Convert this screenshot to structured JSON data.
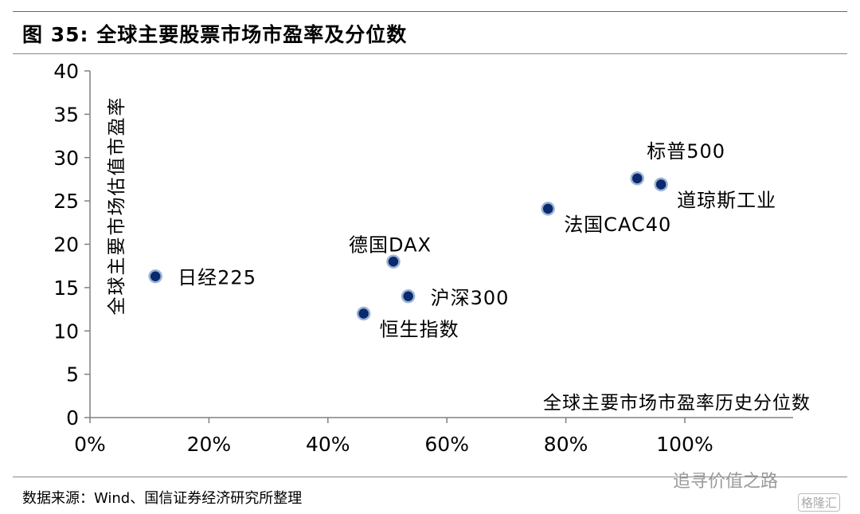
{
  "figure_title": "图 35:  全球主要股票市场市盈率及分位数",
  "source_note": "数据来源：Wind、国信证券经济研究所整理",
  "watermark": "追寻价值之路",
  "watermark_brand": "格隆汇",
  "chart_data": {
    "type": "scatter",
    "title": "",
    "xlabel": "全球主要市场市盈率历史分位数",
    "ylabel": "全球主要市场估值市盈率",
    "xlim": [
      0,
      1.2
    ],
    "ylim": [
      0,
      40
    ],
    "x_ticks": [
      0,
      0.2,
      0.4,
      0.6,
      0.8,
      1.0
    ],
    "x_tick_labels": [
      "0%",
      "20%",
      "40%",
      "60%",
      "80%",
      "100%"
    ],
    "y_ticks": [
      0,
      5,
      10,
      15,
      20,
      25,
      30,
      35,
      40
    ],
    "y_tick_labels": [
      "0",
      "5",
      "10",
      "15",
      "20",
      "25",
      "30",
      "35",
      "40"
    ],
    "grid": false,
    "legend": "none",
    "marker_color": "#0a2a6e",
    "points": [
      {
        "label": "日经225",
        "x": 0.11,
        "y": 16.3,
        "label_pos": "right"
      },
      {
        "label": "德国DAX",
        "x": 0.51,
        "y": 18.0,
        "label_pos": "top-left"
      },
      {
        "label": "沪深300",
        "x": 0.535,
        "y": 14.0,
        "label_pos": "right"
      },
      {
        "label": "恒生指数",
        "x": 0.46,
        "y": 12.0,
        "label_pos": "bottom-right"
      },
      {
        "label": "法国CAC40",
        "x": 0.77,
        "y": 24.1,
        "label_pos": "bottom-right"
      },
      {
        "label": "标普500",
        "x": 0.92,
        "y": 27.6,
        "label_pos": "top"
      },
      {
        "label": "道琼斯工业",
        "x": 0.96,
        "y": 26.9,
        "label_pos": "bottom-right"
      }
    ]
  }
}
